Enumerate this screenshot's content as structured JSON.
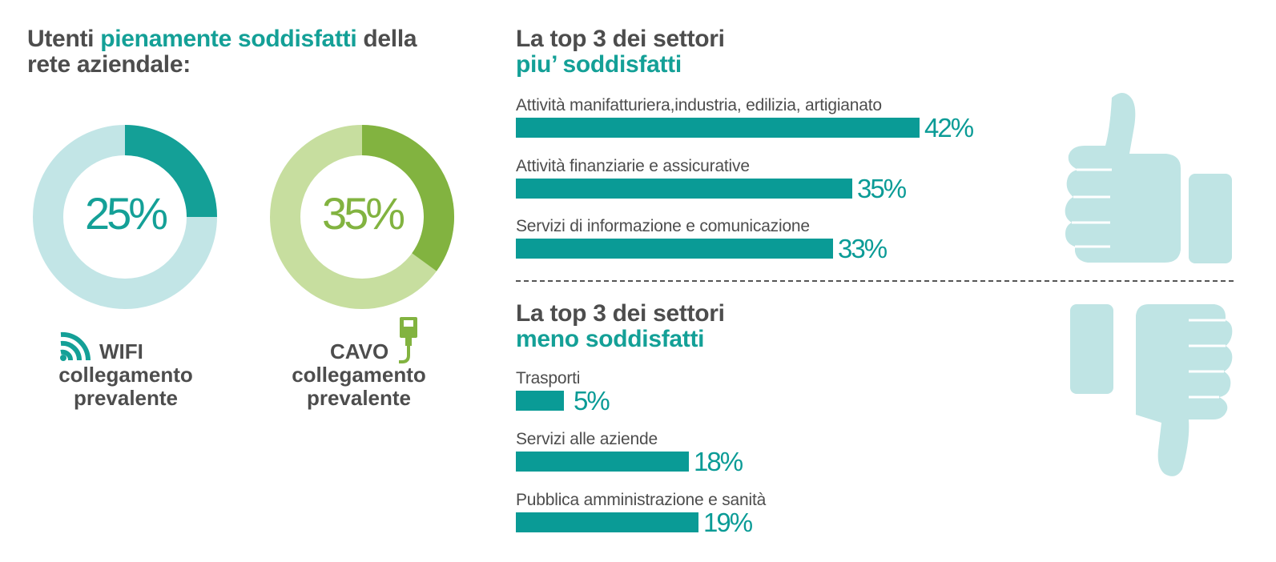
{
  "left_title": {
    "part1": "Utenti ",
    "highlight": "pienamente soddisfatti",
    "part2": " della",
    "line2": "rete aziendale:"
  },
  "top_title": {
    "line1": "La top 3 dei settori",
    "line2": "piu’ soddisfatti"
  },
  "bottom_title": {
    "line1": "La top 3 dei settori",
    "line2": "meno soddisfatti"
  },
  "colors": {
    "teal": "#14a097",
    "teal_light": "#c2e5e6",
    "green": "#82b340",
    "green_light": "#c7de9f",
    "bar": "#0a9b96",
    "thumb": "#bfe4e4"
  },
  "icons": {
    "wifi": "wifi-icon",
    "cable": "ethernet-cable-icon",
    "thumbs_up": "thumbs-up-icon",
    "thumbs_down": "thumbs-down-icon"
  },
  "chart_data": [
    {
      "type": "pie",
      "title": "WIFI collegamento prevalente",
      "value": 25,
      "label": "25%",
      "caption": {
        "line1": "WIFI",
        "line2": "collegamento",
        "line3": "prevalente"
      }
    },
    {
      "type": "pie",
      "title": "CAVO collegamento prevalente",
      "value": 35,
      "label": "35%",
      "caption": {
        "line1": "CAVO",
        "line2": "collegamento",
        "line3": "prevalente"
      }
    },
    {
      "type": "bar",
      "title": "La top 3 dei settori piu’ soddisfatti",
      "categories": [
        "Attività manifatturiera,industria, edilizia, artigianato",
        "Attività finanziarie e assicurative",
        "Servizi di informazione e comunicazione"
      ],
      "values": [
        42,
        35,
        33
      ],
      "labels": [
        "42%",
        "35%",
        "33%"
      ]
    },
    {
      "type": "bar",
      "title": "La top 3 dei settori meno soddisfatti",
      "categories": [
        "Trasporti",
        "Servizi alle aziende",
        "Pubblica amministrazione e sanità"
      ],
      "values": [
        5,
        18,
        19
      ],
      "labels": [
        "5%",
        "18%",
        "19%"
      ]
    }
  ]
}
